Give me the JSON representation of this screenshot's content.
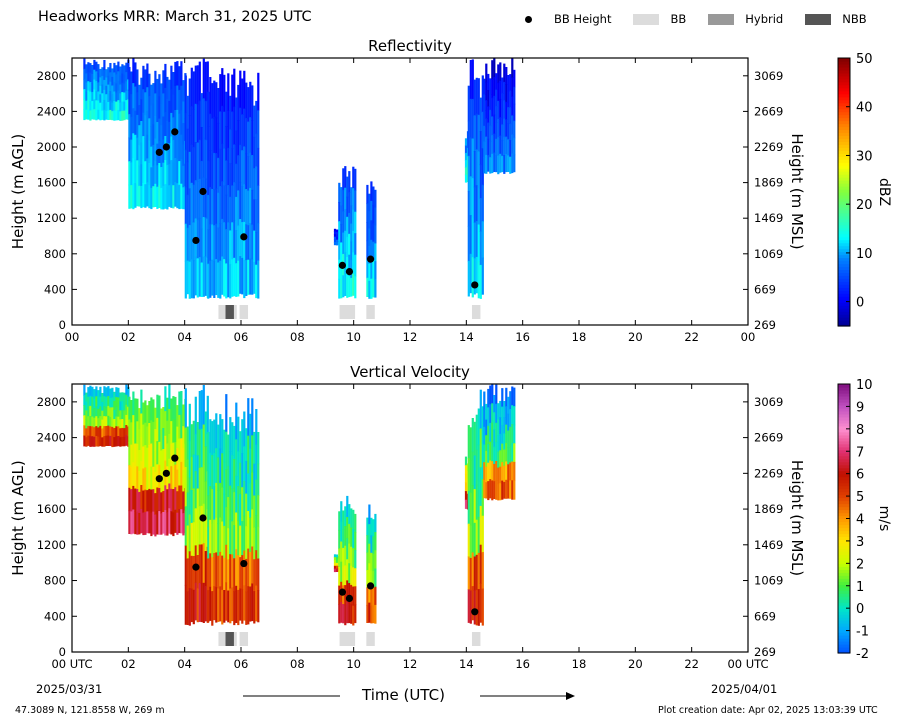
{
  "header": {
    "title": "Headworks MRR:  March 31, 2025 UTC",
    "legend": [
      {
        "label": "BB Height",
        "kind": "dot",
        "color": "#000000"
      },
      {
        "label": "BB",
        "kind": "patch",
        "color": "#dcdcdc"
      },
      {
        "label": "Hybrid",
        "kind": "patch",
        "color": "#999999"
      },
      {
        "label": "NBB",
        "kind": "patch",
        "color": "#555555"
      }
    ]
  },
  "footer": {
    "location": "47.3089 N, 121.8558 W, 269 m",
    "created": "Plot creation date: Apr 02, 2025 13:03:39 UTC",
    "xlabel": "Time (UTC)",
    "start_date": "2025/03/31",
    "end_date": "2025/04/01"
  },
  "chart_data": [
    {
      "type": "heatmap",
      "title": "Reflectivity",
      "ylabel": "Height (m AGL)",
      "y2label": "Height (m MSL)",
      "xlim": [
        0,
        24
      ],
      "ylim": [
        0,
        3000
      ],
      "xticks": [
        "00",
        "02",
        "04",
        "06",
        "08",
        "10",
        "12",
        "14",
        "16",
        "18",
        "20",
        "22",
        "00"
      ],
      "yticks": [
        0,
        400,
        800,
        1200,
        1600,
        2000,
        2400,
        2800
      ],
      "y2ticks": [
        269,
        669,
        1069,
        1469,
        1869,
        2269,
        2669,
        3069
      ],
      "colorbar": {
        "label": "dBZ",
        "min": -5,
        "max": 50,
        "ticks": [
          0,
          10,
          20,
          30,
          40,
          50
        ]
      },
      "colormap": "reflectivity",
      "bb_height": [
        {
          "x": 3.1,
          "y": 1940
        },
        {
          "x": 3.35,
          "y": 2000
        },
        {
          "x": 3.65,
          "y": 2170
        },
        {
          "x": 4.4,
          "y": 950
        },
        {
          "x": 4.65,
          "y": 1500
        },
        {
          "x": 6.1,
          "y": 990
        },
        {
          "x": 9.6,
          "y": 670
        },
        {
          "x": 9.85,
          "y": 600
        },
        {
          "x": 10.6,
          "y": 740
        },
        {
          "x": 14.3,
          "y": 450
        }
      ],
      "bb_bars": [
        {
          "start": 5.2,
          "end": 5.45,
          "kind": "BB"
        },
        {
          "start": 5.45,
          "end": 5.75,
          "kind": "NBB"
        },
        {
          "start": 5.75,
          "end": 5.85,
          "kind": "BB"
        },
        {
          "start": 5.95,
          "end": 6.25,
          "kind": "BB"
        },
        {
          "start": 9.5,
          "end": 10.05,
          "kind": "BB"
        },
        {
          "start": 10.45,
          "end": 10.75,
          "kind": "BB"
        },
        {
          "start": 14.2,
          "end": 14.5,
          "kind": "BB"
        }
      ],
      "echo_regions": [
        {
          "start": 0.4,
          "end": 2.0,
          "top": 3000,
          "bottom": 2300,
          "value": 10
        },
        {
          "start": 2.0,
          "end": 4.0,
          "top": 3000,
          "bottom": 1300,
          "value": 9
        },
        {
          "start": 4.0,
          "end": 4.8,
          "top": 3000,
          "bottom": 300,
          "value": 8
        },
        {
          "start": 4.8,
          "end": 6.6,
          "top": 2900,
          "bottom": 300,
          "value": 7
        },
        {
          "start": 9.3,
          "end": 9.45,
          "top": 1100,
          "bottom": 900,
          "value": 3
        },
        {
          "start": 9.45,
          "end": 10.05,
          "top": 1800,
          "bottom": 300,
          "value": 10
        },
        {
          "start": 10.45,
          "end": 10.75,
          "top": 1700,
          "bottom": 300,
          "value": 8
        },
        {
          "start": 13.95,
          "end": 14.05,
          "top": 2200,
          "bottom": 1600,
          "value": 12
        },
        {
          "start": 14.05,
          "end": 14.6,
          "top": 3000,
          "bottom": 300,
          "value": 8
        },
        {
          "start": 14.6,
          "end": 15.7,
          "top": 3000,
          "bottom": 1700,
          "value": 4
        }
      ]
    },
    {
      "type": "heatmap",
      "title": "Vertical Velocity",
      "ylabel": "Height (m AGL)",
      "y2label": "Height (m MSL)",
      "xlim": [
        0,
        24
      ],
      "ylim": [
        0,
        3000
      ],
      "xticks": [
        "00 UTC",
        "02",
        "04",
        "06",
        "08",
        "10",
        "12",
        "14",
        "16",
        "18",
        "20",
        "22",
        "00 UTC"
      ],
      "yticks": [
        0,
        400,
        800,
        1200,
        1600,
        2000,
        2400,
        2800
      ],
      "y2ticks": [
        269,
        669,
        1069,
        1469,
        1869,
        2269,
        2669,
        3069
      ],
      "colorbar": {
        "label": "m/s",
        "min": -2,
        "max": 10,
        "ticks": [
          -2,
          -1,
          0,
          1,
          2,
          3,
          4,
          5,
          6,
          7,
          8,
          9,
          10
        ]
      },
      "colormap": "velocity",
      "bb_height": [
        {
          "x": 3.1,
          "y": 1940
        },
        {
          "x": 3.35,
          "y": 2000
        },
        {
          "x": 3.65,
          "y": 2170
        },
        {
          "x": 4.4,
          "y": 950
        },
        {
          "x": 4.65,
          "y": 1500
        },
        {
          "x": 6.1,
          "y": 990
        },
        {
          "x": 9.6,
          "y": 670
        },
        {
          "x": 9.85,
          "y": 600
        },
        {
          "x": 10.6,
          "y": 740
        },
        {
          "x": 14.3,
          "y": 450
        }
      ],
      "bb_bars": [
        {
          "start": 5.2,
          "end": 5.45,
          "kind": "BB"
        },
        {
          "start": 5.45,
          "end": 5.75,
          "kind": "NBB"
        },
        {
          "start": 5.75,
          "end": 5.85,
          "kind": "BB"
        },
        {
          "start": 5.95,
          "end": 6.25,
          "kind": "BB"
        },
        {
          "start": 9.5,
          "end": 10.05,
          "kind": "BB"
        },
        {
          "start": 10.45,
          "end": 10.75,
          "kind": "BB"
        },
        {
          "start": 14.2,
          "end": 14.5,
          "kind": "BB"
        }
      ],
      "echo_regions": [
        {
          "start": 0.4,
          "end": 2.0,
          "top": 3000,
          "bottom": 2300,
          "value": 1.5
        },
        {
          "start": 2.0,
          "end": 4.0,
          "top": 3000,
          "bottom": 1300,
          "value": 2.5
        },
        {
          "start": 4.0,
          "end": 4.8,
          "top": 3000,
          "bottom": 300,
          "value": 1.5
        },
        {
          "start": 4.8,
          "end": 6.6,
          "top": 2900,
          "bottom": 300,
          "value": 1.0
        },
        {
          "start": 9.3,
          "end": 9.45,
          "top": 1100,
          "bottom": 900,
          "value": 2.0
        },
        {
          "start": 9.45,
          "end": 10.05,
          "top": 1800,
          "bottom": 300,
          "value": 1.5
        },
        {
          "start": 10.45,
          "end": 10.75,
          "top": 1700,
          "bottom": 300,
          "value": 1.0
        },
        {
          "start": 13.95,
          "end": 14.05,
          "top": 2200,
          "bottom": 1600,
          "value": 3.0
        },
        {
          "start": 14.05,
          "end": 14.6,
          "top": 3000,
          "bottom": 300,
          "value": 1.5
        },
        {
          "start": 14.6,
          "end": 15.7,
          "top": 3000,
          "bottom": 1700,
          "value": 0.5
        }
      ]
    }
  ]
}
